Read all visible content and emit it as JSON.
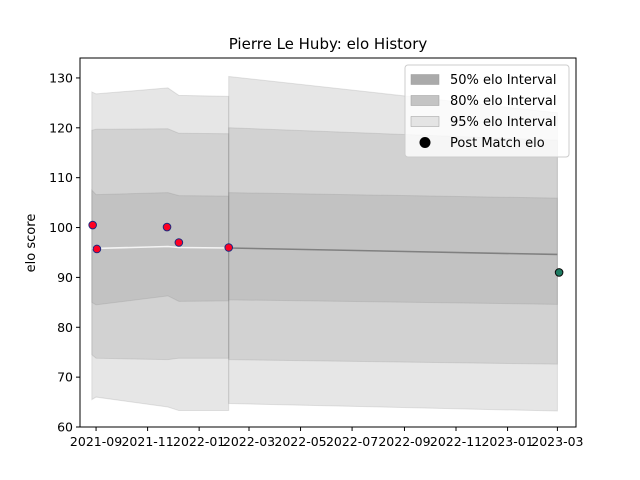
{
  "chart_data": {
    "type": "area",
    "title": "Pierre Le Huby: elo History",
    "xlabel": "",
    "ylabel": "elo score",
    "ylim": [
      60,
      134
    ],
    "yticks": [
      60,
      70,
      80,
      90,
      100,
      110,
      120,
      130
    ],
    "xlim": [
      "2021-08-13",
      "2023-03-23"
    ],
    "xticks": [
      {
        "date": "2021-09-01",
        "label": "2021-09"
      },
      {
        "date": "2021-11-01",
        "label": "2021-11"
      },
      {
        "date": "2022-01-01",
        "label": "2022-01"
      },
      {
        "date": "2022-03-01",
        "label": "2022-03"
      },
      {
        "date": "2022-05-01",
        "label": "2022-05"
      },
      {
        "date": "2022-07-01",
        "label": "2022-07"
      },
      {
        "date": "2022-09-01",
        "label": "2022-09"
      },
      {
        "date": "2022-11-01",
        "label": "2022-11"
      },
      {
        "date": "2023-01-01",
        "label": "2023-01"
      },
      {
        "date": "2023-03-01",
        "label": "2023-03"
      }
    ],
    "grid": false,
    "legend_position": "top-right",
    "legend": [
      {
        "label": "50% elo Interval",
        "kind": "patch",
        "color": "#aaaaaa"
      },
      {
        "label": "80% elo Interval",
        "kind": "patch",
        "color": "#c4c4c4"
      },
      {
        "label": "95% elo Interval",
        "kind": "patch",
        "color": "#e4e4e4"
      },
      {
        "label": "Post Match elo",
        "kind": "marker",
        "color": "#000000"
      }
    ],
    "history_bands": {
      "dates": [
        "2021-08-27",
        "2021-09-01",
        "2021-11-25",
        "2021-12-08",
        "2022-02-05"
      ],
      "mean": [
        95.8,
        95.8,
        96.2,
        96.0,
        95.9
      ],
      "band95": {
        "low": [
          65.5,
          66.0,
          64.0,
          63.3,
          63.3
        ],
        "high": [
          127.2,
          126.8,
          128.0,
          126.5,
          126.3
        ]
      },
      "band80": {
        "low": [
          74.5,
          73.8,
          73.5,
          73.8,
          73.8
        ],
        "high": [
          119.5,
          119.7,
          119.8,
          118.9,
          118.8
        ]
      },
      "band50": {
        "low": [
          85.0,
          84.5,
          86.3,
          85.2,
          85.3
        ],
        "high": [
          107.5,
          106.6,
          107.0,
          106.4,
          106.3
        ]
      }
    },
    "projection_bands": {
      "dates": [
        "2022-02-05",
        "2023-03-01"
      ],
      "mean": [
        95.9,
        94.6
      ],
      "band95": {
        "low": [
          64.7,
          63.2
        ],
        "high": [
          130.3,
          123.0
        ]
      },
      "band80": {
        "low": [
          73.5,
          72.6
        ],
        "high": [
          120.0,
          117.5
        ]
      },
      "band50": {
        "low": [
          85.5,
          84.6
        ],
        "high": [
          107.0,
          105.9
        ]
      }
    },
    "series": [
      {
        "marker_fill": "#ff0022",
        "marker_edge": "#1b2a80",
        "points": [
          {
            "date": "2021-08-28",
            "elo": 100.5
          },
          {
            "date": "2021-09-02",
            "elo": 95.7
          },
          {
            "date": "2021-11-24",
            "elo": 100.1
          },
          {
            "date": "2021-12-08",
            "elo": 97.0
          },
          {
            "date": "2022-02-05",
            "elo": 96.0
          }
        ]
      },
      {
        "marker_fill": "#1e7b62",
        "marker_edge": "#0a0a0a",
        "points": [
          {
            "date": "2023-03-03",
            "elo": 91.0
          }
        ]
      }
    ]
  }
}
